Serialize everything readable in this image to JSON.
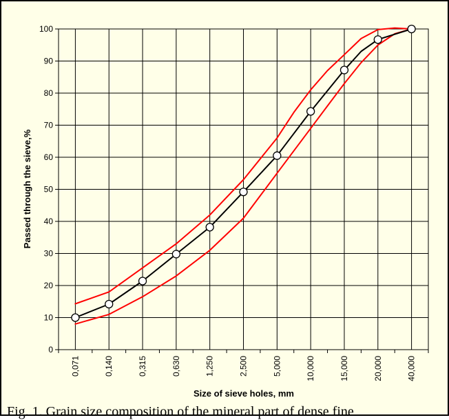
{
  "chart_data": {
    "type": "line",
    "xlabel": "Size of sieve holes, mm",
    "ylabel": "Passed through the sieve,%",
    "categories": [
      "0,071",
      "0,140",
      "0,315",
      "0,630",
      "1,250",
      "2,500",
      "5,000",
      "10,000",
      "15,000",
      "20,000",
      "40,000"
    ],
    "yticks": [
      "0",
      "10",
      "20",
      "30",
      "40",
      "50",
      "60",
      "70",
      "80",
      "90",
      "100"
    ],
    "ylim": [
      0,
      100
    ],
    "grid": true,
    "legend": "none",
    "series": [
      {
        "color": "#FF0000",
        "points": [
          [
            0,
            14.3
          ],
          [
            1,
            18.0
          ],
          [
            2,
            25.5
          ],
          [
            3,
            33.0
          ],
          [
            4,
            42.0
          ],
          [
            5,
            53.0
          ],
          [
            6,
            66.0
          ],
          [
            6.5,
            74.0
          ],
          [
            7,
            81.0
          ],
          [
            7.5,
            87.0
          ],
          [
            8,
            92.0
          ],
          [
            8.5,
            97.0
          ],
          [
            9,
            99.8
          ],
          [
            9.5,
            100.3
          ],
          [
            10,
            100
          ]
        ]
      },
      {
        "color": "#FF0000",
        "points": [
          [
            0,
            8.0
          ],
          [
            1,
            11.0
          ],
          [
            2,
            16.5
          ],
          [
            3,
            23.0
          ],
          [
            4,
            31.0
          ],
          [
            5,
            41.0
          ],
          [
            6,
            55.0
          ],
          [
            7,
            69.0
          ],
          [
            7.5,
            76.0
          ],
          [
            8,
            83.0
          ],
          [
            8.5,
            89.5
          ],
          [
            9,
            95.0
          ],
          [
            9.5,
            98.5
          ],
          [
            10,
            100
          ]
        ]
      },
      {
        "color": "#000000",
        "marker": "circle",
        "points": [
          [
            0,
            10.0
          ],
          [
            1,
            14.2
          ],
          [
            2,
            21.4
          ],
          [
            3,
            29.8
          ],
          [
            4,
            38.2
          ],
          [
            5,
            49.2
          ],
          [
            6,
            60.5
          ],
          [
            7,
            74.3
          ],
          [
            8,
            87.2
          ],
          [
            8.5,
            93.0
          ],
          [
            9,
            96.7
          ],
          [
            10,
            100
          ]
        ],
        "marker_points": [
          [
            0,
            10.0
          ],
          [
            1,
            14.2
          ],
          [
            2,
            21.4
          ],
          [
            3,
            29.8
          ],
          [
            4,
            38.2
          ],
          [
            5,
            49.2
          ],
          [
            6,
            60.5
          ],
          [
            7,
            74.3
          ],
          [
            8,
            87.2
          ],
          [
            9,
            96.7
          ],
          [
            10,
            100
          ]
        ]
      }
    ]
  },
  "caption": "Fig. 1. Grain size composition of the mineral part of dense fine"
}
